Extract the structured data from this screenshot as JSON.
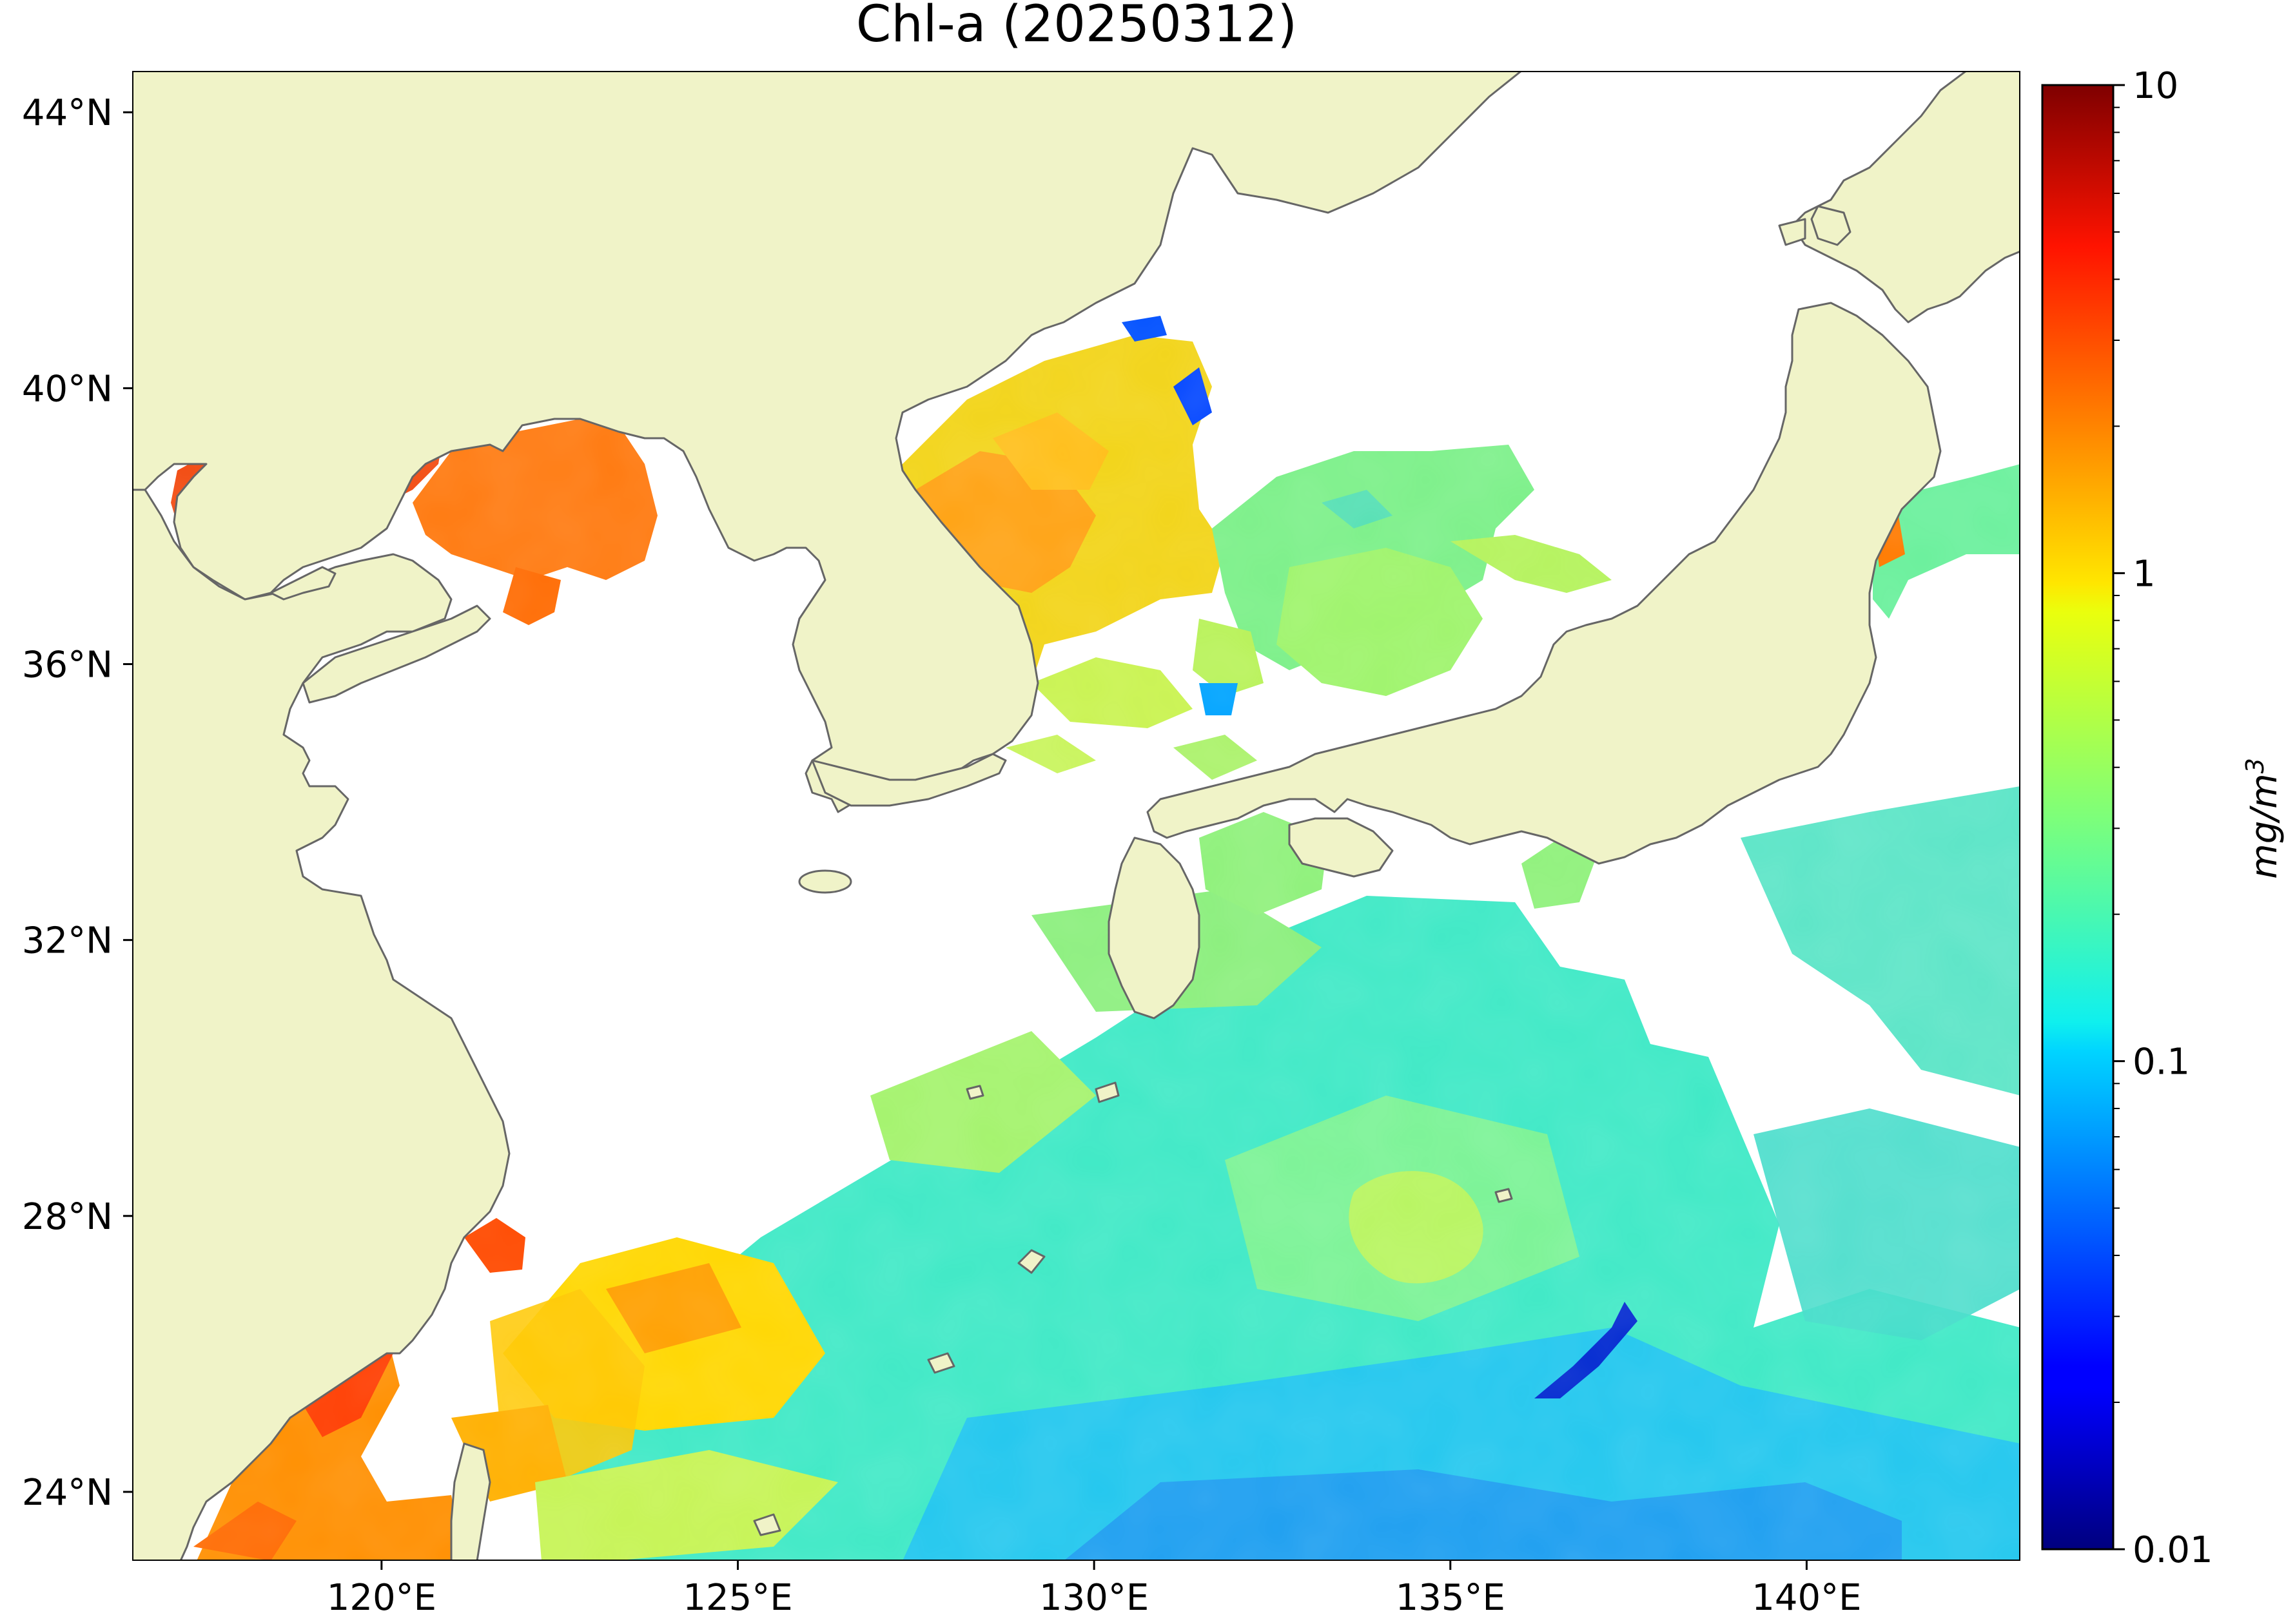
{
  "title": "Chl-a (20250312)",
  "map": {
    "lon_range": [
      116.5,
      143.0
    ],
    "lat_range": [
      23.0,
      44.6
    ],
    "land_color": "#f0f3c8",
    "coastline_color": "#666666",
    "no_data_color": "#ffffff",
    "lon_ticks": [
      {
        "value": 120,
        "label": "120°E"
      },
      {
        "value": 125,
        "label": "125°E"
      },
      {
        "value": 130,
        "label": "130°E"
      },
      {
        "value": 135,
        "label": "135°E"
      },
      {
        "value": 140,
        "label": "140°E"
      }
    ],
    "lat_ticks": [
      {
        "value": 24,
        "label": "24°N"
      },
      {
        "value": 28,
        "label": "28°N"
      },
      {
        "value": 32,
        "label": "32°N"
      },
      {
        "value": 36,
        "label": "36°N"
      },
      {
        "value": 40,
        "label": "40°N"
      },
      {
        "value": 44,
        "label": "44°N"
      }
    ]
  },
  "colorbar": {
    "unit_base": "mg/m",
    "unit_exp": "3",
    "scale": "log",
    "range": [
      0.01,
      10
    ],
    "colormap": "jet",
    "ticks": [
      {
        "value": 10,
        "label": "10"
      },
      {
        "value": 1,
        "label": "1"
      },
      {
        "value": 0.1,
        "label": "0.1"
      },
      {
        "value": 0.01,
        "label": "0.01"
      }
    ]
  }
}
